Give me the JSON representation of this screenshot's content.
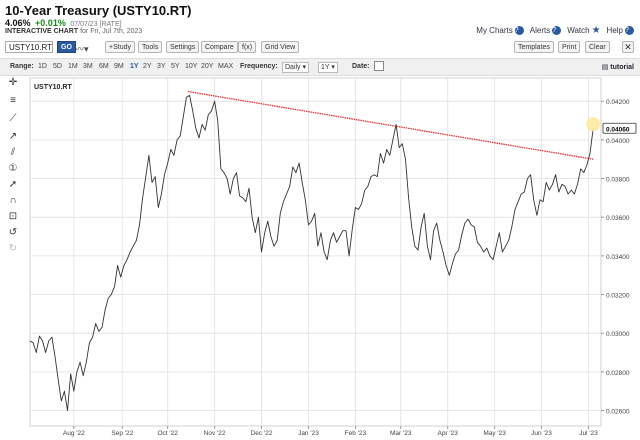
{
  "header": {
    "title": "10-Year Treasury (USTY10.RT)",
    "price": "4.06%",
    "change": "+0.01%",
    "quote_meta": "07/07/23 [RATE]",
    "subtitle_strong": "INTERACTIVE CHART",
    "subtitle_rest": "for Fri, Jul 7th, 2023",
    "links": {
      "my_charts": "My Charts",
      "alerts": "Alerts",
      "watch": "Watch",
      "help": "Help"
    }
  },
  "toolbar": {
    "symbol_value": "USTY10.RT",
    "go_label": "GO",
    "study_label": "+Study",
    "tools_label": "Tools",
    "settings_label": "Settings",
    "compare_label": "Compare",
    "fx_label": "f(x)",
    "gridview_label": "Grid View",
    "templates_label": "Templates",
    "print_label": "Print",
    "clear_label": "Clear"
  },
  "rangebar": {
    "range_label": "Range:",
    "ranges": [
      "1D",
      "5D",
      "1M",
      "3M",
      "6M",
      "9M",
      "1Y",
      "2Y",
      "3Y",
      "5Y",
      "10Y",
      "20Y",
      "MAX"
    ],
    "active_range": "1Y",
    "frequency_label": "Frequency:",
    "frequency_value": "Daily",
    "period_value": "1Y",
    "date_label": "Date:",
    "tutorial_label": "tutorial"
  },
  "chart_data": {
    "type": "line",
    "series_name": "USTY10.RT",
    "last_value": "0.04060",
    "ylim": [
      0.0252,
      0.0432
    ],
    "yticks": [
      0.026,
      0.028,
      0.03,
      0.032,
      0.034,
      0.036,
      0.038,
      0.04,
      0.042
    ],
    "ytick_labels": [
      "0.02600",
      "0.02800",
      "0.03000",
      "0.03200",
      "0.03400",
      "0.03600",
      "0.03800",
      "0.04000",
      "0.04200"
    ],
    "xlim": [
      "2022-07-12",
      "2023-07-12"
    ],
    "xticks": [
      "2022-08-09",
      "2022-09-09",
      "2022-10-08",
      "2022-11-07",
      "2022-12-07",
      "2023-01-06",
      "2023-02-05",
      "2023-03-06",
      "2023-04-05",
      "2023-05-05",
      "2023-06-04",
      "2023-07-04"
    ],
    "xtick_labels": [
      "Aug '22",
      "Sep '22",
      "Oct '22",
      "Nov '22",
      "Dec '22",
      "Jan '23",
      "Feb '23",
      "Mar '23",
      "Apr '23",
      "May '23",
      "Jun '23",
      "Jul '23"
    ],
    "series": [
      {
        "date": "2022-07-12",
        "value": 0.0296
      },
      {
        "date": "2022-07-14",
        "value": 0.0295
      },
      {
        "date": "2022-07-16",
        "value": 0.029
      },
      {
        "date": "2022-07-18",
        "value": 0.02985
      },
      {
        "date": "2022-07-20",
        "value": 0.0296
      },
      {
        "date": "2022-07-22",
        "value": 0.029
      },
      {
        "date": "2022-07-24",
        "value": 0.0296
      },
      {
        "date": "2022-07-26",
        "value": 0.0298
      },
      {
        "date": "2022-07-28",
        "value": 0.0288
      },
      {
        "date": "2022-07-30",
        "value": 0.0276
      },
      {
        "date": "2022-08-01",
        "value": 0.0265
      },
      {
        "date": "2022-08-03",
        "value": 0.027
      },
      {
        "date": "2022-08-05",
        "value": 0.026
      },
      {
        "date": "2022-08-07",
        "value": 0.0279
      },
      {
        "date": "2022-08-09",
        "value": 0.027
      },
      {
        "date": "2022-08-11",
        "value": 0.028
      },
      {
        "date": "2022-08-13",
        "value": 0.0285
      },
      {
        "date": "2022-08-15",
        "value": 0.0278
      },
      {
        "date": "2022-08-17",
        "value": 0.0285
      },
      {
        "date": "2022-08-19",
        "value": 0.0295
      },
      {
        "date": "2022-08-21",
        "value": 0.0298
      },
      {
        "date": "2022-08-23",
        "value": 0.0305
      },
      {
        "date": "2022-08-25",
        "value": 0.0301
      },
      {
        "date": "2022-08-27",
        "value": 0.0303
      },
      {
        "date": "2022-08-29",
        "value": 0.0312
      },
      {
        "date": "2022-08-31",
        "value": 0.0318
      },
      {
        "date": "2022-09-02",
        "value": 0.032
      },
      {
        "date": "2022-09-04",
        "value": 0.0324
      },
      {
        "date": "2022-09-06",
        "value": 0.0335
      },
      {
        "date": "2022-09-08",
        "value": 0.0329
      },
      {
        "date": "2022-09-10",
        "value": 0.0335
      },
      {
        "date": "2022-09-12",
        "value": 0.0338
      },
      {
        "date": "2022-09-14",
        "value": 0.0342
      },
      {
        "date": "2022-09-16",
        "value": 0.0345
      },
      {
        "date": "2022-09-18",
        "value": 0.0348
      },
      {
        "date": "2022-09-20",
        "value": 0.0356
      },
      {
        "date": "2022-09-22",
        "value": 0.037
      },
      {
        "date": "2022-09-24",
        "value": 0.0381
      },
      {
        "date": "2022-09-26",
        "value": 0.0392
      },
      {
        "date": "2022-09-28",
        "value": 0.0378
      },
      {
        "date": "2022-09-30",
        "value": 0.0381
      },
      {
        "date": "2022-10-02",
        "value": 0.0365
      },
      {
        "date": "2022-10-04",
        "value": 0.0372
      },
      {
        "date": "2022-10-06",
        "value": 0.0382
      },
      {
        "date": "2022-10-08",
        "value": 0.0388
      },
      {
        "date": "2022-10-10",
        "value": 0.0395
      },
      {
        "date": "2022-10-12",
        "value": 0.0392
      },
      {
        "date": "2022-10-14",
        "value": 0.04
      },
      {
        "date": "2022-10-16",
        "value": 0.0402
      },
      {
        "date": "2022-10-18",
        "value": 0.0412
      },
      {
        "date": "2022-10-20",
        "value": 0.0422
      },
      {
        "date": "2022-10-22",
        "value": 0.0423
      },
      {
        "date": "2022-10-24",
        "value": 0.0415
      },
      {
        "date": "2022-10-26",
        "value": 0.0406
      },
      {
        "date": "2022-10-28",
        "value": 0.0401
      },
      {
        "date": "2022-10-30",
        "value": 0.0408
      },
      {
        "date": "2022-11-01",
        "value": 0.0405
      },
      {
        "date": "2022-11-03",
        "value": 0.0413
      },
      {
        "date": "2022-11-05",
        "value": 0.0415
      },
      {
        "date": "2022-11-07",
        "value": 0.042
      },
      {
        "date": "2022-11-09",
        "value": 0.041
      },
      {
        "date": "2022-11-11",
        "value": 0.0385
      },
      {
        "date": "2022-11-13",
        "value": 0.0383
      },
      {
        "date": "2022-11-15",
        "value": 0.038
      },
      {
        "date": "2022-11-17",
        "value": 0.0372
      },
      {
        "date": "2022-11-19",
        "value": 0.038
      },
      {
        "date": "2022-11-21",
        "value": 0.0383
      },
      {
        "date": "2022-11-23",
        "value": 0.0371
      },
      {
        "date": "2022-11-25",
        "value": 0.037
      },
      {
        "date": "2022-11-27",
        "value": 0.0368
      },
      {
        "date": "2022-11-29",
        "value": 0.0375
      },
      {
        "date": "2022-12-01",
        "value": 0.036
      },
      {
        "date": "2022-12-03",
        "value": 0.0352
      },
      {
        "date": "2022-12-05",
        "value": 0.036
      },
      {
        "date": "2022-12-07",
        "value": 0.0342
      },
      {
        "date": "2022-12-09",
        "value": 0.0352
      },
      {
        "date": "2022-12-11",
        "value": 0.0358
      },
      {
        "date": "2022-12-13",
        "value": 0.035
      },
      {
        "date": "2022-12-15",
        "value": 0.0345
      },
      {
        "date": "2022-12-17",
        "value": 0.0348
      },
      {
        "date": "2022-12-19",
        "value": 0.0362
      },
      {
        "date": "2022-12-21",
        "value": 0.0368
      },
      {
        "date": "2022-12-23",
        "value": 0.0372
      },
      {
        "date": "2022-12-25",
        "value": 0.0376
      },
      {
        "date": "2022-12-27",
        "value": 0.0386
      },
      {
        "date": "2022-12-29",
        "value": 0.0383
      },
      {
        "date": "2022-12-31",
        "value": 0.0388
      },
      {
        "date": "2023-01-02",
        "value": 0.0378
      },
      {
        "date": "2023-01-04",
        "value": 0.0369
      },
      {
        "date": "2023-01-06",
        "value": 0.0356
      },
      {
        "date": "2023-01-08",
        "value": 0.0358
      },
      {
        "date": "2023-01-10",
        "value": 0.0362
      },
      {
        "date": "2023-01-12",
        "value": 0.0345
      },
      {
        "date": "2023-01-14",
        "value": 0.0352
      },
      {
        "date": "2023-01-16",
        "value": 0.0342
      },
      {
        "date": "2023-01-18",
        "value": 0.0338
      },
      {
        "date": "2023-01-20",
        "value": 0.0348
      },
      {
        "date": "2023-01-22",
        "value": 0.0352
      },
      {
        "date": "2023-01-24",
        "value": 0.0347
      },
      {
        "date": "2023-01-26",
        "value": 0.035
      },
      {
        "date": "2023-01-28",
        "value": 0.0353
      },
      {
        "date": "2023-01-30",
        "value": 0.0353
      },
      {
        "date": "2023-02-01",
        "value": 0.034
      },
      {
        "date": "2023-02-03",
        "value": 0.0354
      },
      {
        "date": "2023-02-05",
        "value": 0.0365
      },
      {
        "date": "2023-02-07",
        "value": 0.0364
      },
      {
        "date": "2023-02-09",
        "value": 0.0367
      },
      {
        "date": "2023-02-11",
        "value": 0.0374
      },
      {
        "date": "2023-02-13",
        "value": 0.0376
      },
      {
        "date": "2023-02-15",
        "value": 0.0381
      },
      {
        "date": "2023-02-17",
        "value": 0.0382
      },
      {
        "date": "2023-02-19",
        "value": 0.0381
      },
      {
        "date": "2023-02-21",
        "value": 0.0393
      },
      {
        "date": "2023-02-23",
        "value": 0.0388
      },
      {
        "date": "2023-02-25",
        "value": 0.0395
      },
      {
        "date": "2023-02-27",
        "value": 0.0392
      },
      {
        "date": "2023-03-01",
        "value": 0.04
      },
      {
        "date": "2023-03-03",
        "value": 0.0408
      },
      {
        "date": "2023-03-05",
        "value": 0.0396
      },
      {
        "date": "2023-03-07",
        "value": 0.0398
      },
      {
        "date": "2023-03-09",
        "value": 0.039
      },
      {
        "date": "2023-03-11",
        "value": 0.037
      },
      {
        "date": "2023-03-13",
        "value": 0.0355
      },
      {
        "date": "2023-03-15",
        "value": 0.0345
      },
      {
        "date": "2023-03-17",
        "value": 0.0343
      },
      {
        "date": "2023-03-19",
        "value": 0.0355
      },
      {
        "date": "2023-03-21",
        "value": 0.0362
      },
      {
        "date": "2023-03-23",
        "value": 0.0345
      },
      {
        "date": "2023-03-25",
        "value": 0.0338
      },
      {
        "date": "2023-03-27",
        "value": 0.0353
      },
      {
        "date": "2023-03-29",
        "value": 0.0357
      },
      {
        "date": "2023-03-31",
        "value": 0.0348
      },
      {
        "date": "2023-04-02",
        "value": 0.0342
      },
      {
        "date": "2023-04-04",
        "value": 0.0335
      },
      {
        "date": "2023-04-06",
        "value": 0.033
      },
      {
        "date": "2023-04-08",
        "value": 0.0336
      },
      {
        "date": "2023-04-10",
        "value": 0.0341
      },
      {
        "date": "2023-04-12",
        "value": 0.0343
      },
      {
        "date": "2023-04-14",
        "value": 0.0351
      },
      {
        "date": "2023-04-16",
        "value": 0.0357
      },
      {
        "date": "2023-04-18",
        "value": 0.0359
      },
      {
        "date": "2023-04-20",
        "value": 0.0356
      },
      {
        "date": "2023-04-22",
        "value": 0.0355
      },
      {
        "date": "2023-04-24",
        "value": 0.0347
      },
      {
        "date": "2023-04-26",
        "value": 0.0345
      },
      {
        "date": "2023-04-28",
        "value": 0.0342
      },
      {
        "date": "2023-04-30",
        "value": 0.0344
      },
      {
        "date": "2023-05-02",
        "value": 0.034
      },
      {
        "date": "2023-05-04",
        "value": 0.0338
      },
      {
        "date": "2023-05-06",
        "value": 0.0345
      },
      {
        "date": "2023-05-08",
        "value": 0.0352
      },
      {
        "date": "2023-05-10",
        "value": 0.0342
      },
      {
        "date": "2023-05-12",
        "value": 0.0345
      },
      {
        "date": "2023-05-14",
        "value": 0.0348
      },
      {
        "date": "2023-05-16",
        "value": 0.0355
      },
      {
        "date": "2023-05-18",
        "value": 0.0364
      },
      {
        "date": "2023-05-20",
        "value": 0.0368
      },
      {
        "date": "2023-05-22",
        "value": 0.0372
      },
      {
        "date": "2023-05-24",
        "value": 0.0373
      },
      {
        "date": "2023-05-26",
        "value": 0.038
      },
      {
        "date": "2023-05-28",
        "value": 0.0382
      },
      {
        "date": "2023-05-30",
        "value": 0.0369
      },
      {
        "date": "2023-06-01",
        "value": 0.0361
      },
      {
        "date": "2023-06-03",
        "value": 0.0369
      },
      {
        "date": "2023-06-05",
        "value": 0.0368
      },
      {
        "date": "2023-06-07",
        "value": 0.0378
      },
      {
        "date": "2023-06-09",
        "value": 0.0374
      },
      {
        "date": "2023-06-11",
        "value": 0.0377
      },
      {
        "date": "2023-06-13",
        "value": 0.0382
      },
      {
        "date": "2023-06-15",
        "value": 0.0373
      },
      {
        "date": "2023-06-17",
        "value": 0.0377
      },
      {
        "date": "2023-06-19",
        "value": 0.0376
      },
      {
        "date": "2023-06-21",
        "value": 0.0372
      },
      {
        "date": "2023-06-23",
        "value": 0.0374
      },
      {
        "date": "2023-06-25",
        "value": 0.0372
      },
      {
        "date": "2023-06-27",
        "value": 0.0377
      },
      {
        "date": "2023-06-29",
        "value": 0.0385
      },
      {
        "date": "2023-07-01",
        "value": 0.0383
      },
      {
        "date": "2023-07-03",
        "value": 0.0387
      },
      {
        "date": "2023-07-05",
        "value": 0.0393
      },
      {
        "date": "2023-07-07",
        "value": 0.0406
      }
    ],
    "trendline": {
      "start": {
        "date": "2022-10-21",
        "value": 0.0425
      },
      "end": {
        "date": "2023-07-07",
        "value": 0.039
      }
    },
    "colors": {
      "line": "#333333",
      "trendline": "#e0303a",
      "last_marker": "#ffe9a0",
      "grid": "#e6e6e6"
    }
  }
}
